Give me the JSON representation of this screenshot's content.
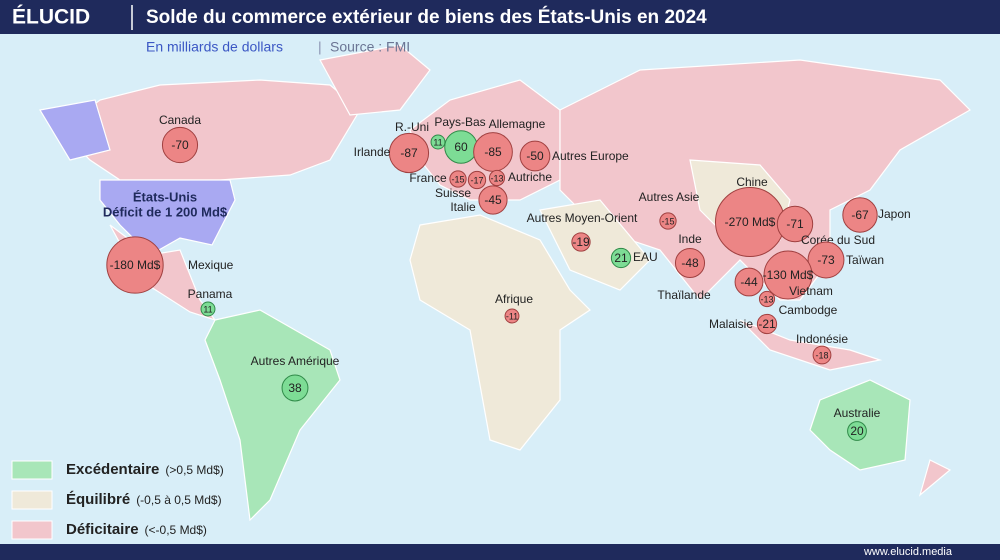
{
  "header": {
    "brand": "ÉLUCID",
    "title": "Solde du commerce extérieur de biens des États-Unis en 2024",
    "subtitle": "En milliards de dollars",
    "source": "Source : FMI"
  },
  "us_label": {
    "name": "États-Unis",
    "note": "Déficit de 1 200 Md$"
  },
  "bubble_colors": {
    "positive": "#7ddc95",
    "negative": "#ec8585"
  },
  "bubbles": [
    {
      "name": "Canada",
      "value": -70
    },
    {
      "name": "Mexique",
      "value": -180,
      "value_label": "-180 Md$"
    },
    {
      "name": "Panama",
      "value": 11
    },
    {
      "name": "Autres Amérique",
      "value": 38
    },
    {
      "name": "Irlande",
      "value": -87
    },
    {
      "name": "R.-Uni",
      "value": 11
    },
    {
      "name": "Pays-Bas",
      "value": 60
    },
    {
      "name": "Allemagne",
      "value": -85
    },
    {
      "name": "Autres Europe",
      "value": -50
    },
    {
      "name": "France",
      "value": -15
    },
    {
      "name": "Suisse",
      "value": -17
    },
    {
      "name": "Autriche",
      "value": -13
    },
    {
      "name": "Italie",
      "value": -45
    },
    {
      "name": "Autres Moyen-Orient",
      "value": -19
    },
    {
      "name": "EAU",
      "value": 21
    },
    {
      "name": "Afrique",
      "value": -11
    },
    {
      "name": "Autres Asie",
      "value": -15
    },
    {
      "name": "Inde",
      "value": -48
    },
    {
      "name": "Chine",
      "value": -270,
      "value_label": "-270 Md$"
    },
    {
      "name": "Corée du Sud",
      "value": -71
    },
    {
      "name": "Japon",
      "value": -67
    },
    {
      "name": "Taïwan",
      "value": -73
    },
    {
      "name": "Vietnam",
      "value": -130,
      "value_label": "-130 Md$"
    },
    {
      "name": "Thaïlande",
      "value": -44
    },
    {
      "name": "Cambodge",
      "value": -13
    },
    {
      "name": "Malaisie",
      "value": -21
    },
    {
      "name": "Indonésie",
      "value": -18
    },
    {
      "name": "Australie",
      "value": 20
    }
  ],
  "legend": [
    {
      "label": "Excédentaire",
      "range": "(>0,5 Md$)",
      "color": "#a8e6b8"
    },
    {
      "label": "Équilibré",
      "range": "(-0,5 à 0,5 Md$)",
      "color": "#efe9d9"
    },
    {
      "label": "Déficitaire",
      "range": "(<-0,5 Md$)",
      "color": "#f2c6cc"
    }
  ],
  "footer": "www.elucid.media"
}
